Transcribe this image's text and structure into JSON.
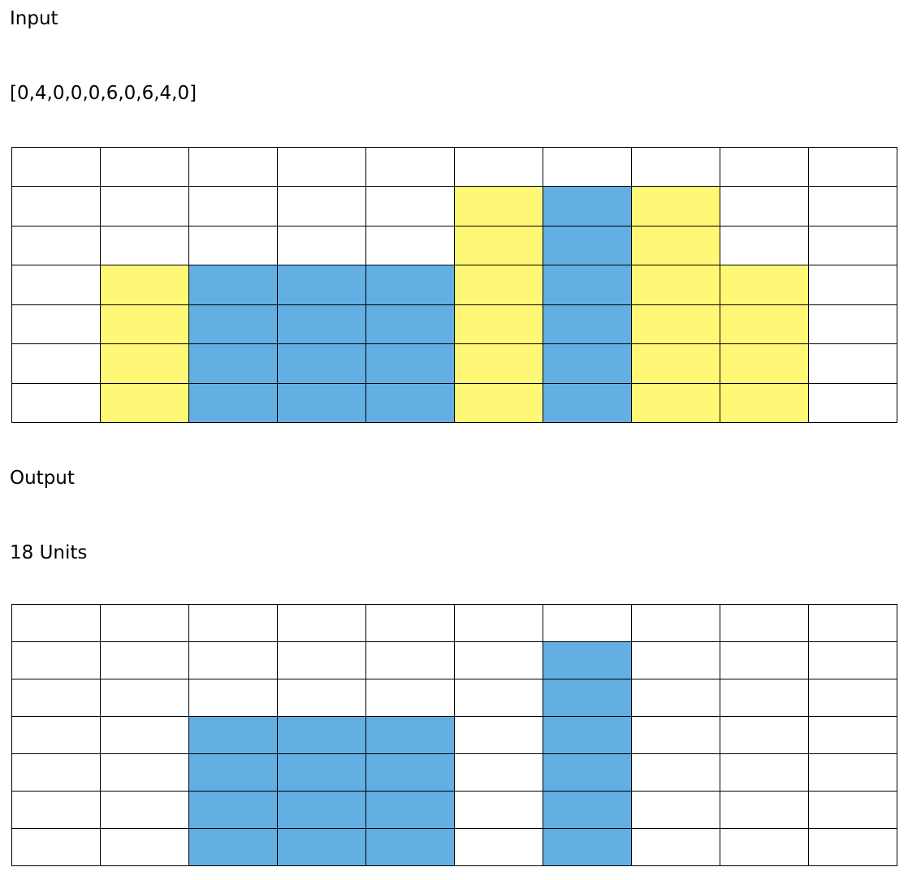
{
  "input": {
    "heading": "Input",
    "array_text": "[0,4,0,0,0,6,0,6,4,0]",
    "grid": {
      "rows": 7,
      "columns": 10,
      "bar_heights": [
        0,
        4,
        0,
        0,
        0,
        6,
        0,
        6,
        4,
        0
      ],
      "water_levels": [
        0,
        0,
        4,
        4,
        4,
        0,
        6,
        0,
        0,
        0
      ]
    }
  },
  "output": {
    "heading": "Output",
    "result_text": "18 Units",
    "grid": {
      "rows": 7,
      "columns": 10,
      "water_levels": [
        0,
        0,
        4,
        4,
        4,
        0,
        6,
        0,
        0,
        0
      ]
    }
  },
  "colors": {
    "bar": "#FFF876",
    "water": "#63AEE2",
    "empty": "#FFFFFF",
    "grid_line": "#000000"
  }
}
